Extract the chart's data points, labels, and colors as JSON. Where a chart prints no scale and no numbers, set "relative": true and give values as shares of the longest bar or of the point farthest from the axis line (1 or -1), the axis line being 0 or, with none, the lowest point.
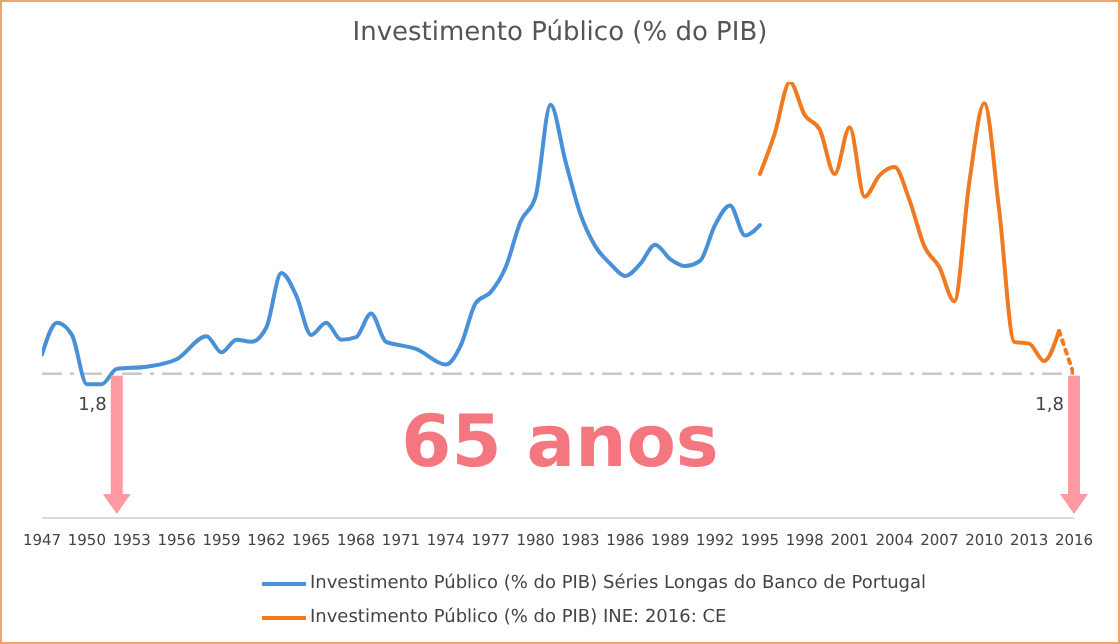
{
  "chart_data": {
    "type": "line",
    "title": "Investimento Público (% do PIB)",
    "relative": true,
    "xlim": [
      1947,
      2016
    ],
    "xticks": [
      1947,
      1950,
      1953,
      1956,
      1959,
      1962,
      1965,
      1968,
      1971,
      1974,
      1977,
      1980,
      1983,
      1986,
      1989,
      1992,
      1995,
      1998,
      2001,
      2004,
      2007,
      2010,
      2013,
      2016
    ],
    "series": [
      {
        "name": "Investimento Público (% do PIB) Séries Longas do Banco de Portugal",
        "color": "#4a90d9",
        "x": [
          1947,
          1948,
          1949,
          1950,
          1951,
          1952,
          1954,
          1956,
          1958,
          1959,
          1960,
          1961,
          1962,
          1963,
          1964,
          1965,
          1966,
          1967,
          1968,
          1969,
          1970,
          1971,
          1972,
          1974,
          1975,
          1976,
          1977,
          1978,
          1979,
          1980,
          1981,
          1982,
          1983,
          1984,
          1985,
          1986,
          1987,
          1988,
          1989,
          1990,
          1991,
          1992,
          1993,
          1994,
          1995
        ],
        "values": [
          0.375,
          0.448,
          0.42,
          0.307,
          0.307,
          0.342,
          0.347,
          0.364,
          0.417,
          0.38,
          0.409,
          0.404,
          0.437,
          0.562,
          0.51,
          0.42,
          0.448,
          0.409,
          0.415,
          0.469,
          0.404,
          0.396,
          0.388,
          0.352,
          0.396,
          0.493,
          0.518,
          0.575,
          0.68,
          0.737,
          0.948,
          0.818,
          0.697,
          0.623,
          0.583,
          0.555,
          0.583,
          0.627,
          0.594,
          0.578,
          0.59,
          0.672,
          0.717,
          0.648,
          0.672
        ]
      },
      {
        "name": "Investimento Público (% do PIB) INE: 2016: CE",
        "color": "#f07a22",
        "x": [
          1995,
          1996,
          1997,
          1998,
          1999,
          2000,
          2001,
          2002,
          2003,
          2004,
          2005,
          2006,
          2007,
          2008,
          2009,
          2010,
          2011,
          2012,
          2013,
          2014,
          2015
        ],
        "values": [
          0.789,
          0.883,
          1.0,
          0.924,
          0.891,
          0.789,
          0.896,
          0.737,
          0.786,
          0.805,
          0.729,
          0.623,
          0.575,
          0.497,
          0.77,
          0.951,
          0.705,
          0.404,
          0.4,
          0.36,
          0.429
        ]
      },
      {
        "color": "#f07a22",
        "line_style": "dotted",
        "x": [
          2015,
          2016
        ],
        "values": [
          0.429,
          0.328
        ]
      }
    ],
    "ref_lines": [
      {
        "axis": "y",
        "value": 0.331,
        "color": "#c8c8c8",
        "line_style": "dashed"
      }
    ],
    "annotations": [
      {
        "text": "1,8",
        "x": 1952,
        "y": 0.331
      },
      {
        "text": "1,8",
        "x": 2016,
        "y": 0.331
      },
      "65 anos"
    ],
    "legend": "bottom",
    "marker": "none"
  }
}
